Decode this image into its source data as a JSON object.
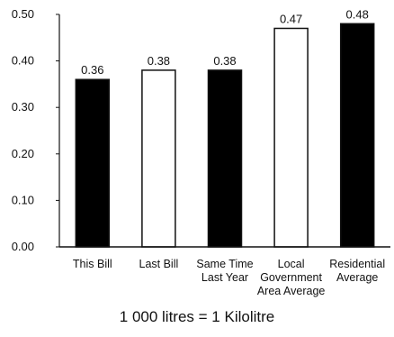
{
  "chart_data": {
    "type": "bar",
    "categories": [
      [
        "This Bill"
      ],
      [
        "Last Bill"
      ],
      [
        "Same Time",
        "Last Year"
      ],
      [
        "Local",
        "Government",
        "Area Average"
      ],
      [
        "Residential",
        "Average"
      ]
    ],
    "values": [
      0.36,
      0.38,
      0.38,
      0.47,
      0.48
    ],
    "value_labels": [
      "0.36",
      "0.38",
      "0.38",
      "0.47",
      "0.48"
    ],
    "bar_fills": [
      "#000000",
      "#ffffff",
      "#000000",
      "#ffffff",
      "#000000"
    ],
    "yticks": [
      "0.00",
      "0.10",
      "0.20",
      "0.30",
      "0.40",
      "0.50"
    ],
    "ylim": [
      0,
      0.5
    ],
    "grid": false,
    "legend": "none"
  },
  "footnote": "1 000 litres = 1 Kilolitre"
}
